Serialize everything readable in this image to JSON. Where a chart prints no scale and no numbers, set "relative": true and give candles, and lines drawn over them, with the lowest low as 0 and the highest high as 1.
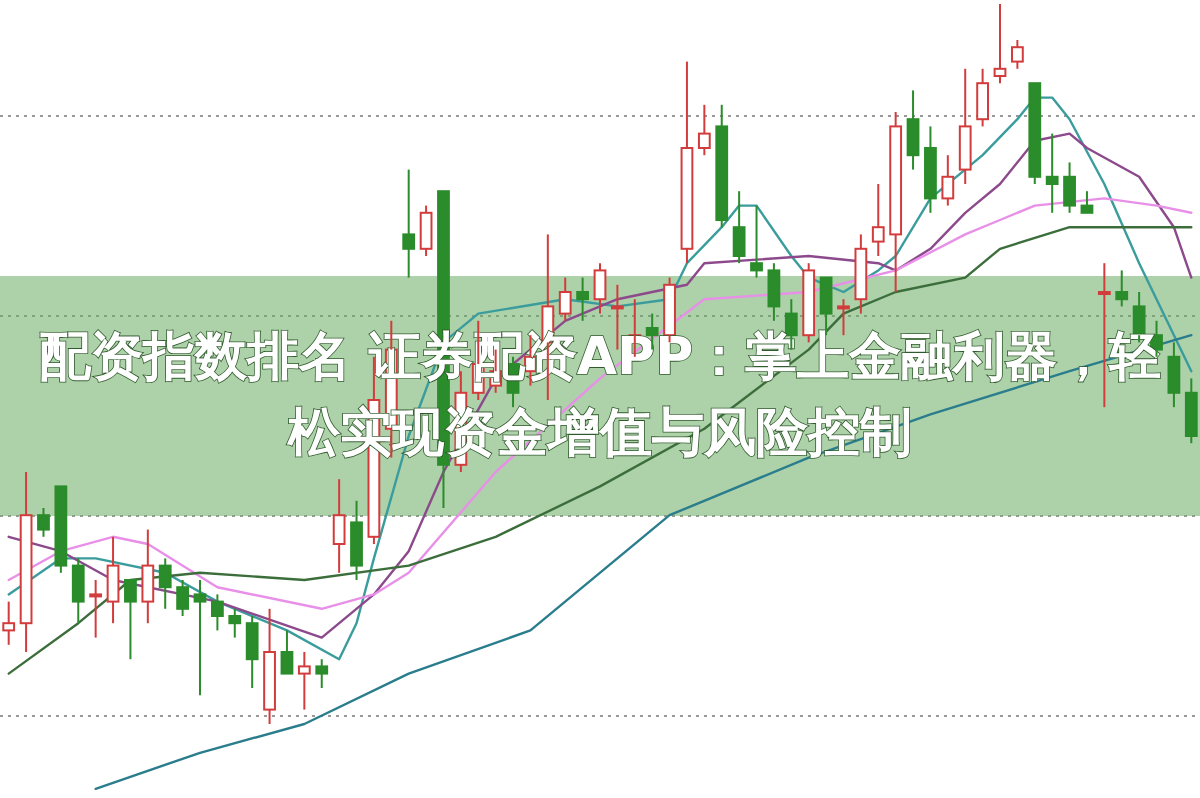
{
  "chart_data": {
    "type": "candlestick",
    "title": "配资指数排名 证券配资APP：掌上金融利器，轻松实现资金增值与风险控制",
    "relative": true,
    "grid": "y",
    "categories": [
      null,
      null,
      null,
      null,
      null,
      null,
      null,
      null,
      null,
      null,
      null,
      null,
      null,
      null,
      null,
      null,
      null,
      null,
      null,
      null,
      null,
      null,
      null,
      null,
      null,
      null,
      null,
      null,
      null,
      null,
      null,
      null,
      null,
      null,
      null,
      null,
      null,
      null,
      null,
      null,
      null,
      null,
      null,
      null,
      null,
      null,
      null,
      null,
      null,
      null,
      null,
      null,
      null,
      null,
      null,
      null,
      null,
      null,
      null,
      null,
      null,
      null,
      null,
      null,
      null,
      null,
      null,
      null,
      null
    ],
    "ohlc": [
      [
        0.13,
        0.17,
        0.11,
        0.14
      ],
      [
        0.14,
        0.35,
        0.1,
        0.29
      ],
      [
        0.29,
        0.3,
        0.26,
        0.27
      ],
      [
        0.33,
        0.33,
        0.21,
        0.22
      ],
      [
        0.22,
        0.23,
        0.14,
        0.17
      ],
      [
        0.18,
        0.2,
        0.12,
        0.18
      ],
      [
        0.17,
        0.26,
        0.14,
        0.22
      ],
      [
        0.2,
        0.2,
        0.09,
        0.17
      ],
      [
        0.17,
        0.27,
        0.14,
        0.22
      ],
      [
        0.22,
        0.23,
        0.16,
        0.19
      ],
      [
        0.19,
        0.2,
        0.15,
        0.16
      ],
      [
        0.18,
        0.2,
        0.04,
        0.17
      ],
      [
        0.17,
        0.18,
        0.13,
        0.15
      ],
      [
        0.15,
        0.16,
        0.12,
        0.14
      ],
      [
        0.14,
        0.15,
        0.05,
        0.09
      ],
      [
        0.02,
        0.16,
        0,
        0.1
      ],
      [
        0.1,
        0.13,
        0.07,
        0.07
      ],
      [
        0.07,
        0.1,
        0.02,
        0.08
      ],
      [
        0.08,
        0.09,
        0.05,
        0.07
      ],
      [
        0.25,
        0.34,
        0.21,
        0.29
      ],
      [
        0.28,
        0.31,
        0.2,
        0.22
      ],
      [
        0.26,
        0.51,
        0.25,
        0.45
      ],
      [
        0.41,
        0.56,
        0.37,
        0.52
      ],
      [
        0.68,
        0.77,
        0.62,
        0.66
      ],
      [
        0.66,
        0.72,
        0.65,
        0.71
      ],
      [
        0.74,
        0.74,
        0.3,
        0.36
      ],
      [
        0.36,
        0.49,
        0.35,
        0.46
      ],
      [
        0.46,
        0.56,
        0.45,
        0.5
      ],
      [
        0.47,
        0.52,
        0.46,
        0.49
      ],
      [
        0.5,
        0.51,
        0.44,
        0.46
      ],
      [
        0.49,
        0.54,
        0.47,
        0.51
      ],
      [
        0.53,
        0.68,
        0.45,
        0.58
      ],
      [
        0.57,
        0.62,
        0.56,
        0.6
      ],
      [
        0.6,
        0.62,
        0.56,
        0.59
      ],
      [
        0.59,
        0.64,
        0.57,
        0.63
      ],
      [
        0.58,
        0.61,
        0.52,
        0.58
      ],
      [
        0.54,
        0.59,
        0.51,
        0.54
      ],
      [
        0.55,
        0.57,
        0.52,
        0.54
      ],
      [
        0.54,
        0.62,
        0.53,
        0.61
      ],
      [
        0.66,
        0.92,
        0.64,
        0.8
      ],
      [
        0.8,
        0.86,
        0.79,
        0.82
      ],
      [
        0.83,
        0.86,
        0.69,
        0.7
      ],
      [
        0.69,
        0.74,
        0.64,
        0.65
      ],
      [
        0.64,
        0.72,
        0.62,
        0.63
      ],
      [
        0.63,
        0.64,
        0.56,
        0.58
      ],
      [
        0.57,
        0.59,
        0.52,
        0.54
      ],
      [
        0.54,
        0.64,
        0.53,
        0.63
      ],
      [
        0.62,
        0.62,
        0.54,
        0.57
      ],
      [
        0.58,
        0.59,
        0.54,
        0.58
      ],
      [
        0.59,
        0.68,
        0.57,
        0.66
      ],
      [
        0.67,
        0.75,
        0.65,
        0.69
      ],
      [
        0.68,
        0.85,
        0.6,
        0.83
      ],
      [
        0.84,
        0.88,
        0.77,
        0.79
      ],
      [
        0.8,
        0.83,
        0.71,
        0.73
      ],
      [
        0.73,
        0.79,
        0.72,
        0.76
      ],
      [
        0.77,
        0.91,
        0.75,
        0.83
      ],
      [
        0.84,
        0.91,
        0.83,
        0.89
      ],
      [
        0.9,
        1,
        0.89,
        0.91
      ],
      [
        0.92,
        0.95,
        0.91,
        0.94
      ],
      [
        0.89,
        0.89,
        0.75,
        0.76
      ],
      [
        0.76,
        0.82,
        0.71,
        0.75
      ],
      [
        0.76,
        0.78,
        0.71,
        0.72
      ],
      [
        0.72,
        0.74,
        0.71,
        0.71
      ],
      [
        0.6,
        0.64,
        0.44,
        0.6
      ],
      [
        0.6,
        0.63,
        0.58,
        0.59
      ],
      [
        0.58,
        0.6,
        0.53,
        0.54
      ],
      [
        0.54,
        0.56,
        0.51,
        0.52
      ],
      [
        0.51,
        0.53,
        0.44,
        0.46
      ],
      [
        0.46,
        0.48,
        0.39,
        0.4
      ]
    ],
    "series": [
      {
        "type": "line",
        "color": "#3a9c9c",
        "values": [
          0.18,
          null,
          null,
          0.23,
          null,
          0.23,
          null,
          null,
          null,
          0.21,
          null,
          null,
          0.17,
          null,
          null,
          null,
          0.13,
          null,
          null,
          0.09,
          0.14,
          0.23,
          null,
          0.4,
          null,
          0.53,
          null,
          0.57,
          null,
          null,
          null,
          null,
          0.59,
          null,
          null,
          0.58,
          null,
          null,
          0.59,
          0.64,
          null,
          0.69,
          0.72,
          0.72,
          null,
          0.65,
          0.62,
          null,
          0.6,
          null,
          0.63,
          0.65,
          null,
          0.73,
          null,
          null,
          0.79,
          null,
          0.84,
          0.87,
          0.87,
          0.84,
          null,
          0.75,
          null,
          0.64,
          null,
          0.54,
          0.49
        ]
      },
      {
        "type": "line",
        "color": "#8c4a8c",
        "values": [
          0.26,
          null,
          null,
          0.24,
          null,
          null,
          0.2,
          null,
          null,
          null,
          null,
          null,
          0.17,
          null,
          null,
          null,
          null,
          null,
          0.12,
          null,
          null,
          0.18,
          null,
          0.24,
          null,
          0.35,
          null,
          null,
          0.48,
          null,
          null,
          null,
          0.56,
          null,
          null,
          0.59,
          null,
          null,
          null,
          0.61,
          0.64,
          null,
          null,
          null,
          null,
          null,
          0.65,
          null,
          null,
          null,
          0.64,
          0.63,
          null,
          0.66,
          null,
          0.71,
          null,
          0.75,
          null,
          0.81,
          null,
          0.82,
          0.8,
          null,
          null,
          0.76,
          null,
          0.69,
          0.62
        ]
      },
      {
        "type": "line",
        "color": "#e890e8",
        "values": [
          0.2,
          null,
          null,
          0.24,
          null,
          null,
          0.26,
          null,
          0.25,
          null,
          null,
          null,
          0.19,
          null,
          null,
          null,
          null,
          null,
          0.16,
          null,
          null,
          0.18,
          null,
          0.21,
          null,
          null,
          null,
          null,
          0.35,
          null,
          null,
          null,
          null,
          null,
          0.48,
          null,
          null,
          null,
          null,
          null,
          0.59,
          null,
          null,
          null,
          null,
          null,
          0.6,
          null,
          null,
          null,
          null,
          0.63,
          null,
          null,
          null,
          0.68,
          null,
          0.7,
          null,
          0.72,
          null,
          null,
          null,
          0.73,
          null,
          null,
          0.72,
          null,
          0.71
        ]
      },
      {
        "type": "line",
        "color": "#3c6e3c",
        "values": [
          0.07,
          null,
          null,
          null,
          0.14,
          null,
          null,
          0.2,
          null,
          null,
          null,
          0.21,
          null,
          null,
          null,
          null,
          null,
          0.2,
          null,
          null,
          null,
          null,
          null,
          0.22,
          null,
          null,
          null,
          null,
          0.26,
          null,
          null,
          null,
          null,
          null,
          0.33,
          null,
          null,
          null,
          null,
          null,
          0.41,
          null,
          null,
          null,
          null,
          null,
          0.52,
          null,
          0.57,
          null,
          null,
          0.6,
          null,
          null,
          null,
          0.62,
          null,
          0.66,
          null,
          null,
          null,
          0.69,
          null,
          null,
          null,
          0.69,
          null,
          null,
          0.69
        ]
      },
      {
        "type": "line",
        "color": "#2a7d8c",
        "values": [
          null,
          null,
          null,
          null,
          null,
          -0.09,
          null,
          null,
          null,
          null,
          null,
          -0.04,
          null,
          null,
          null,
          null,
          null,
          0,
          null,
          null,
          null,
          null,
          null,
          0.07,
          null,
          null,
          null,
          null,
          null,
          null,
          0.13,
          null,
          null,
          null,
          null,
          null,
          null,
          null,
          0.29,
          null,
          null,
          null,
          null,
          null,
          null,
          null,
          0.37,
          null,
          null,
          null,
          null,
          null,
          null,
          0.43,
          null,
          null,
          null,
          null,
          null,
          null,
          null,
          0.49,
          null,
          null,
          null,
          null,
          null,
          null,
          0.54
        ]
      }
    ]
  }
}
